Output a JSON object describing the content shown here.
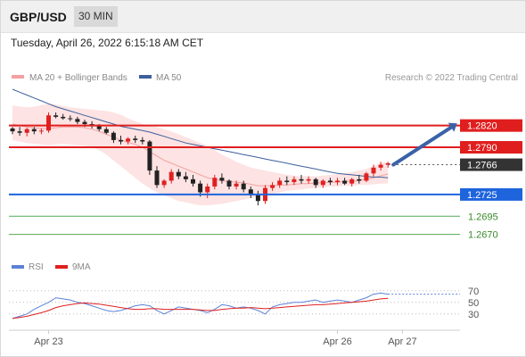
{
  "header": {
    "symbol": "GBP/USD",
    "timeframe": "30 MIN"
  },
  "datetime": "Tuesday, April 26, 2022 6:15:18 AM CET",
  "legend": {
    "ma20": "MA 20 + Bollinger Bands",
    "ma50": "MA 50",
    "credit": "Research © 2022 Trading Central"
  },
  "colors": {
    "ma20": "#f4a0a0",
    "ma50": "#3d5f9c",
    "band_fill": "#fde3e3",
    "resistance": "#e01e1e",
    "pivot": "#1e64dc",
    "support": "#55aa55",
    "candle_up": "#e02020",
    "candle_down": "#222222",
    "rsi": "#5b82d6",
    "rsi_ma": "#e02020",
    "forecast_arrow": "#3a62a8"
  },
  "chart_data": [
    {
      "type": "candlestick",
      "ylim": [
        1.264,
        1.287
      ],
      "x_labels": [
        "Apr 23",
        "Apr 26",
        "Apr 27"
      ],
      "candles": [
        [
          1.2816,
          1.2818,
          1.2808,
          1.2812
        ],
        [
          1.2812,
          1.2818,
          1.2806,
          1.281
        ],
        [
          1.281,
          1.2817,
          1.2805,
          1.2815
        ],
        [
          1.2815,
          1.2818,
          1.2808,
          1.2812
        ],
        [
          1.2812,
          1.2816,
          1.2808,
          1.2813
        ],
        [
          1.2813,
          1.2838,
          1.281,
          1.2834
        ],
        [
          1.2834,
          1.2838,
          1.283,
          1.2832
        ],
        [
          1.2832,
          1.2836,
          1.2828,
          1.283
        ],
        [
          1.283,
          1.2834,
          1.2826,
          1.2829
        ],
        [
          1.2829,
          1.2832,
          1.2822,
          1.2825
        ],
        [
          1.2825,
          1.2828,
          1.2818,
          1.2822
        ],
        [
          1.2822,
          1.2826,
          1.2816,
          1.2819
        ],
        [
          1.2819,
          1.2822,
          1.2812,
          1.2815
        ],
        [
          1.2815,
          1.2818,
          1.2808,
          1.281
        ],
        [
          1.281,
          1.2812,
          1.2796,
          1.28
        ],
        [
          1.28,
          1.2806,
          1.2794,
          1.2798
        ],
        [
          1.2798,
          1.2804,
          1.2794,
          1.2802
        ],
        [
          1.2802,
          1.2806,
          1.2796,
          1.28
        ],
        [
          1.28,
          1.2804,
          1.2794,
          1.2798
        ],
        [
          1.2798,
          1.28,
          1.2752,
          1.2758
        ],
        [
          1.2758,
          1.2764,
          1.2734,
          1.2738
        ],
        [
          1.2738,
          1.2746,
          1.2734,
          1.2744
        ],
        [
          1.2744,
          1.276,
          1.274,
          1.2756
        ],
        [
          1.2756,
          1.276,
          1.2746,
          1.275
        ],
        [
          1.275,
          1.2756,
          1.2742,
          1.2746
        ],
        [
          1.2746,
          1.2752,
          1.2736,
          1.274
        ],
        [
          1.274,
          1.2744,
          1.2722,
          1.2728
        ],
        [
          1.2728,
          1.274,
          1.272,
          1.2736
        ],
        [
          1.2736,
          1.2752,
          1.2732,
          1.2748
        ],
        [
          1.2748,
          1.2754,
          1.274,
          1.2744
        ],
        [
          1.2744,
          1.2746,
          1.2732,
          1.2736
        ],
        [
          1.2736,
          1.2744,
          1.2732,
          1.274
        ],
        [
          1.274,
          1.2744,
          1.2728,
          1.2732
        ],
        [
          1.2732,
          1.2736,
          1.272,
          1.2724
        ],
        [
          1.2724,
          1.273,
          1.271,
          1.2716
        ],
        [
          1.2716,
          1.2738,
          1.2712,
          1.2734
        ],
        [
          1.2734,
          1.2742,
          1.273,
          1.2738
        ],
        [
          1.2738,
          1.2748,
          1.2734,
          1.2744
        ],
        [
          1.2744,
          1.275,
          1.2738,
          1.2742
        ],
        [
          1.2742,
          1.275,
          1.2738,
          1.2746
        ],
        [
          1.2746,
          1.2752,
          1.274,
          1.2744
        ],
        [
          1.2744,
          1.275,
          1.274,
          1.2746
        ],
        [
          1.2746,
          1.2748,
          1.2734,
          1.2738
        ],
        [
          1.2738,
          1.2746,
          1.2734,
          1.2744
        ],
        [
          1.2744,
          1.2748,
          1.2738,
          1.2742
        ],
        [
          1.2742,
          1.2748,
          1.2738,
          1.2744
        ],
        [
          1.2744,
          1.2748,
          1.2738,
          1.274
        ],
        [
          1.274,
          1.2748,
          1.2736,
          1.2746
        ],
        [
          1.2746,
          1.2752,
          1.274,
          1.2744
        ],
        [
          1.2744,
          1.2756,
          1.2742,
          1.2754
        ],
        [
          1.2754,
          1.2766,
          1.275,
          1.2762
        ],
        [
          1.2762,
          1.277,
          1.2758,
          1.2766
        ],
        [
          1.2766,
          1.277,
          1.2762,
          1.2768
        ]
      ],
      "ma20": [
        1.2822,
        1.282,
        1.2818,
        1.2817,
        1.2816,
        1.2816,
        1.2817,
        1.2818,
        1.2818,
        1.2818,
        1.2817,
        1.2815,
        1.2812,
        1.2808,
        1.2804,
        1.28,
        1.2797,
        1.2794,
        1.279,
        1.2784,
        1.2778,
        1.2772,
        1.2768,
        1.2764,
        1.276,
        1.2756,
        1.2752,
        1.2748,
        1.2746,
        1.2744,
        1.2743,
        1.2742,
        1.2741,
        1.2739,
        1.2737,
        1.2737,
        1.2737,
        1.2738,
        1.2738,
        1.2739,
        1.274,
        1.274,
        1.2741,
        1.2741,
        1.2742,
        1.2742,
        1.2743,
        1.2743,
        1.2744,
        1.2746,
        1.2748,
        1.2751,
        1.2753
      ],
      "bb_upper": [
        1.2848,
        1.2846,
        1.2845,
        1.2846,
        1.2848,
        1.285,
        1.2849,
        1.2847,
        1.2845,
        1.2844,
        1.2843,
        1.2842,
        1.2841,
        1.284,
        1.2838,
        1.2835,
        1.283,
        1.2826,
        1.2822,
        1.282,
        1.2818,
        1.2815,
        1.2812,
        1.2808,
        1.2804,
        1.28,
        1.2796,
        1.2792,
        1.2786,
        1.278,
        1.2775,
        1.277,
        1.2766,
        1.2762,
        1.276,
        1.2758,
        1.2756,
        1.2754,
        1.2752,
        1.2751,
        1.275,
        1.275,
        1.275,
        1.2751,
        1.2752,
        1.2753,
        1.2754,
        1.2756,
        1.2758,
        1.276,
        1.2764,
        1.2768,
        1.277
      ],
      "bb_lower": [
        1.28,
        1.2798,
        1.2796,
        1.2795,
        1.2794,
        1.2793,
        1.2794,
        1.2795,
        1.2794,
        1.2793,
        1.2792,
        1.279,
        1.2786,
        1.278,
        1.2772,
        1.2764,
        1.2756,
        1.2748,
        1.274,
        1.2734,
        1.2728,
        1.2724,
        1.272,
        1.2716,
        1.2714,
        1.2712,
        1.271,
        1.271,
        1.2711,
        1.2712,
        1.2714,
        1.2716,
        1.2718,
        1.272,
        1.2722,
        1.2724,
        1.2726,
        1.2728,
        1.273,
        1.2731,
        1.2732,
        1.2733,
        1.2734,
        1.2735,
        1.2736,
        1.2736,
        1.2737,
        1.2737,
        1.2738,
        1.2738,
        1.2739,
        1.274,
        1.274
      ],
      "ma50": [
        1.287,
        1.2866,
        1.2862,
        1.2858,
        1.2854,
        1.285,
        1.2846,
        1.2843,
        1.284,
        1.2837,
        1.2834,
        1.2831,
        1.2828,
        1.2825,
        1.2822,
        1.2819,
        1.2817,
        1.2815,
        1.2813,
        1.2811,
        1.2808,
        1.2805,
        1.2802,
        1.2799,
        1.2796,
        1.2794,
        1.2792,
        1.279,
        1.2788,
        1.2786,
        1.2784,
        1.2782,
        1.278,
        1.2778,
        1.2776,
        1.2774,
        1.2772,
        1.277,
        1.2768,
        1.2766,
        1.2764,
        1.2762,
        1.276,
        1.2758,
        1.2756,
        1.2754,
        1.2753,
        1.2752,
        1.2751,
        1.275,
        1.2749,
        1.2749,
        1.2748
      ],
      "levels": [
        {
          "value": 1.282,
          "label": "1.2820",
          "kind": "resistance"
        },
        {
          "value": 1.279,
          "label": "1.2790",
          "kind": "resistance"
        },
        {
          "value": 1.2766,
          "label": "1.2766",
          "kind": "current"
        },
        {
          "value": 1.2725,
          "label": "1.2725",
          "kind": "pivot"
        },
        {
          "value": 1.2695,
          "label": "1.2695",
          "kind": "support"
        },
        {
          "value": 1.267,
          "label": "1.2670",
          "kind": "support"
        }
      ],
      "forecast": {
        "from": 1.2766,
        "to": 1.282
      }
    },
    {
      "type": "line",
      "title": "RSI",
      "series": [
        {
          "name": "RSI",
          "values": [
            22,
            26,
            30,
            38,
            44,
            50,
            58,
            56,
            54,
            50,
            48,
            44,
            40,
            36,
            34,
            36,
            40,
            44,
            46,
            44,
            36,
            30,
            36,
            42,
            40,
            38,
            36,
            32,
            38,
            46,
            44,
            40,
            42,
            40,
            36,
            30,
            42,
            46,
            48,
            50,
            50,
            52,
            54,
            50,
            52,
            54,
            52,
            50,
            54,
            58,
            64,
            66,
            64
          ]
        },
        {
          "name": "9MA",
          "values": [
            22,
            24,
            26,
            29,
            32,
            36,
            41,
            44,
            46,
            48,
            49,
            48,
            47,
            45,
            43,
            41,
            39,
            38,
            38,
            39,
            39,
            38,
            38,
            38,
            38,
            38,
            37,
            36,
            36,
            38,
            39,
            40,
            40,
            41,
            40,
            39,
            40,
            41,
            42,
            43,
            44,
            45,
            46,
            46,
            47,
            48,
            49,
            50,
            51,
            52,
            54,
            56,
            57
          ]
        }
      ],
      "ylim": [
        5,
        85
      ],
      "ticks": [
        "70",
        "50",
        "30"
      ]
    }
  ]
}
